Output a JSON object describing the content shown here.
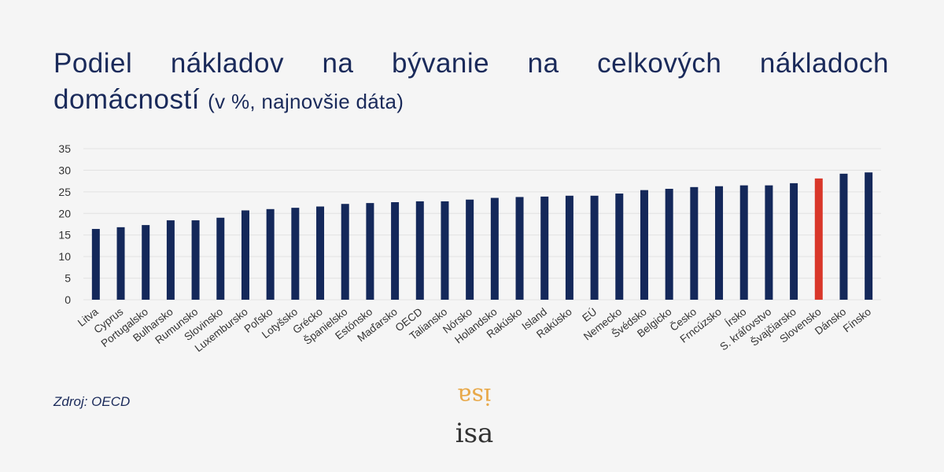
{
  "title": {
    "words_line1": [
      "Podiel",
      "nákladov",
      "na",
      "bývanie",
      "na",
      "celkových",
      "nákladoch"
    ],
    "line2_main": "domácností",
    "line2_sub": "(v %, najnovšie dáta)"
  },
  "source": "Zdroj: OECD",
  "logo": {
    "top_text": "isa",
    "bottom_text": "isa",
    "top_color": "#e8a94a",
    "bottom_color": "#333333"
  },
  "colors": {
    "bar": "#14285a",
    "highlight": "#d9372a",
    "grid": "#e2e2e2",
    "axis_text": "#333333",
    "title": "#1a2a5a"
  },
  "chart_data": {
    "type": "bar",
    "title": "Podiel nákladov na bývanie na celkových nákladoch domácností (v %, najnovšie dáta)",
    "categories": [
      "Litva",
      "Cyprus",
      "Portugalsko",
      "Bulharsko",
      "Rumunsko",
      "Slovinsko",
      "Luxembursko",
      "Poľsko",
      "Lotyšsko",
      "Grécko",
      "Španielsko",
      "Estónsko",
      "Maďarsko",
      "OECD",
      "Taliansko",
      "Nórsko",
      "Holandsko",
      "Rakúsko",
      "Island",
      "Rakúsko",
      "EÚ",
      "Nemecko",
      "Švédsko",
      "Belgicko",
      "Česko",
      "Frncúzsko",
      "Írsko",
      "S. kráľovstvo",
      "Švajčiarsko",
      "Slovensko",
      "Dánsko",
      "Fínsko"
    ],
    "values": [
      16.4,
      16.8,
      17.3,
      18.4,
      18.4,
      19.0,
      20.7,
      21.0,
      21.3,
      21.6,
      22.2,
      22.4,
      22.6,
      22.8,
      22.8,
      23.2,
      23.6,
      23.8,
      23.9,
      24.1,
      24.1,
      24.6,
      25.4,
      25.7,
      26.1,
      26.3,
      26.5,
      26.5,
      27.0,
      28.1,
      29.2,
      29.5
    ],
    "highlight_index": 29,
    "ylim": [
      0,
      35
    ],
    "yticks": [
      0,
      5,
      10,
      15,
      20,
      25,
      30,
      35
    ],
    "grid": true,
    "legend": "none",
    "xlabel": "",
    "ylabel": ""
  }
}
